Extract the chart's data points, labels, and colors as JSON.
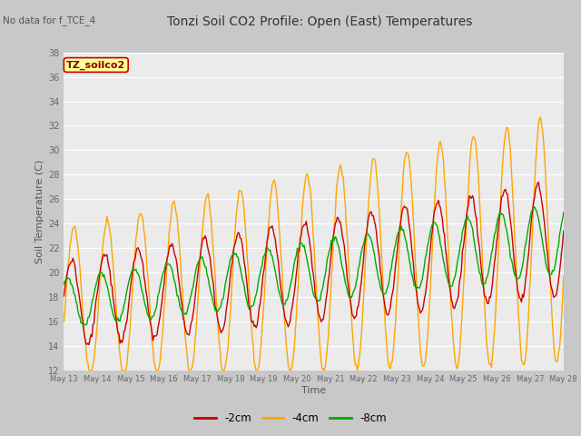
{
  "title": "Tonzi Soil CO2 Profile: Open (East) Temperatures",
  "subtitle": "No data for f_TCE_4",
  "ylabel": "Soil Temperature (C)",
  "xlabel": "Time",
  "ylim": [
    12,
    38
  ],
  "yticks": [
    12,
    14,
    16,
    18,
    20,
    22,
    24,
    26,
    28,
    30,
    32,
    34,
    36,
    38
  ],
  "legend_labels": [
    "-2cm",
    "-4cm",
    "-8cm"
  ],
  "legend_colors": [
    "#cc0000",
    "#ffa500",
    "#00aa00"
  ],
  "fig_bg_color": "#c8c8c8",
  "plot_bg": "#ebebeb",
  "grid_color": "#ffffff",
  "annotation_box": "TZ_soilco2",
  "annotation_box_color": "#ffff99",
  "annotation_text_color": "#880000",
  "x_tick_labels": [
    "May 13",
    "May 14",
    "May 15",
    "May 16",
    "May 17",
    "May 18",
    "May 19",
    "May 20",
    "May 21",
    "May 22",
    "May 23",
    "May 24",
    "May 25",
    "May 26",
    "May 27",
    "May 28"
  ],
  "tick_label_color": "#666666",
  "axis_label_color": "#555555",
  "title_color": "#333333",
  "n_points": 500
}
